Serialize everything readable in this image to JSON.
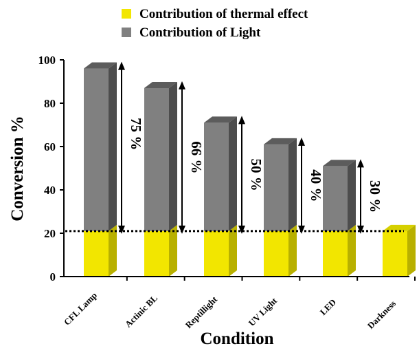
{
  "chart_data": {
    "type": "bar",
    "stacked": true,
    "style": "3d",
    "categories": [
      "CFL Lamp",
      "Actinic BL",
      "Reptillight",
      "UV Light",
      "LED",
      "Darkness"
    ],
    "series": [
      {
        "name": "Contribution of thermal effect",
        "color": "#f2e600",
        "values": [
          21,
          21,
          21,
          21,
          21,
          21
        ]
      },
      {
        "name": "Contribution of Light",
        "color": "#808080",
        "values": [
          75,
          66,
          50,
          40,
          30,
          0
        ]
      }
    ],
    "annotations": [
      "75 %",
      "66 %",
      "50 %",
      "40 %",
      "30 %",
      ""
    ],
    "threshold": 21,
    "xlabel": "Condition",
    "ylabel": "Conversion %",
    "ylim": [
      0,
      100
    ],
    "yticks": [
      0,
      20,
      40,
      60,
      80,
      100
    ],
    "legend_position": "top"
  }
}
